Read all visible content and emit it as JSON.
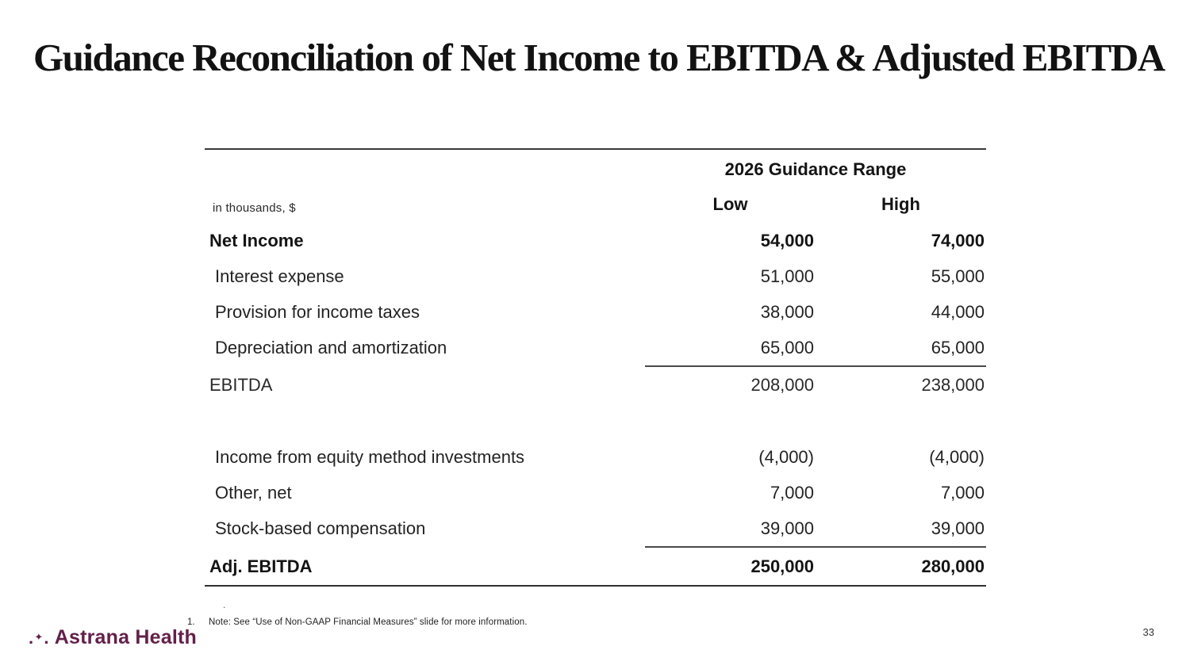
{
  "slide": {
    "title": "Guidance Reconciliation of Net Income to EBITDA & Adjusted EBITDA",
    "page_number": "33",
    "stray_dot": ".",
    "footnote_index": "1.",
    "footnote_text": "Note: See “Use of Non-GAAP Financial Measures” slide for more information."
  },
  "logo": {
    "text": "Astrana Health",
    "icon": "sparkle-dots-icon",
    "brand_color": "#63204a",
    "mark_left_dot": ".",
    "mark_star": "✦",
    "mark_right_dot": "."
  },
  "table": {
    "units_label": "in thousands, $",
    "group_header": "2026 Guidance Range",
    "columns": [
      "Low",
      "High"
    ],
    "rows": [
      {
        "label": "Net Income",
        "low": "54,000",
        "high": "74,000",
        "style": "bold"
      },
      {
        "label": "Interest expense",
        "low": "51,000",
        "high": "55,000",
        "style": "indent"
      },
      {
        "label": "Provision for income taxes",
        "low": "38,000",
        "high": "44,000",
        "style": "indent"
      },
      {
        "label": "Depreciation and amortization",
        "low": "65,000",
        "high": "65,000",
        "style": "indent rule-after"
      },
      {
        "label": "EBITDA",
        "low": "208,000",
        "high": "238,000",
        "style": "subtotal"
      },
      {
        "label": "",
        "low": "",
        "high": "",
        "style": "spacer"
      },
      {
        "label": "Income from equity method investments",
        "low": "(4,000)",
        "high": "(4,000)",
        "style": "indent"
      },
      {
        "label": "Other, net",
        "low": "7,000",
        "high": "7,000",
        "style": "indent"
      },
      {
        "label": "Stock-based compensation",
        "low": "39,000",
        "high": "39,000",
        "style": "indent rule-after"
      },
      {
        "label": "Adj. EBITDA",
        "low": "250,000",
        "high": "280,000",
        "style": "bold total"
      }
    ]
  }
}
